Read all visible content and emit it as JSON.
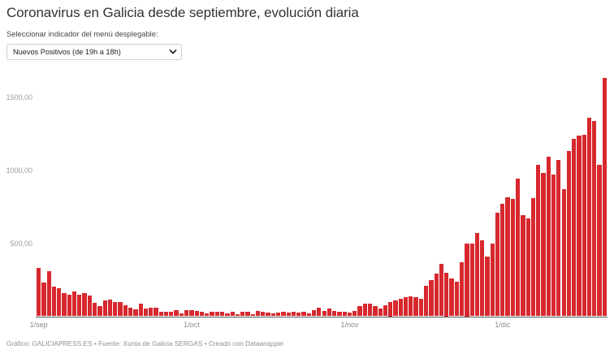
{
  "header": {
    "title": "Coronavirus en Galicia desde septiembre, evolución diaria",
    "subtitle": "Seleccionar indicador del menú desplegable:"
  },
  "indicator_select": {
    "selected": "Nuevos Positivos (de 19h a 18h)",
    "icon": "chevron-down-icon"
  },
  "footer": {
    "text": "Gráfico: GALICIAPRESS.ES • Fuente: Xunta de Galicia SERGAS • Creado con Datawrapper"
  },
  "colors": {
    "bar": "#d7282e",
    "axis_text": "#9a9a9a",
    "title": "#333333"
  },
  "chart_data": {
    "type": "bar",
    "title": "Coronavirus en Galicia desde septiembre, evolución diaria",
    "series_name": "Nuevos Positivos (de 19h a 18h)",
    "xlabel": "",
    "ylabel": "",
    "ylim": [
      0,
      1629
    ],
    "grid": false,
    "legend": "none",
    "y_ticks": [
      {
        "value": 500,
        "label": "500,00"
      },
      {
        "value": 1000,
        "label": "1000,00"
      },
      {
        "value": 1500,
        "label": "1500,00"
      }
    ],
    "x_ticks": [
      {
        "index": 0,
        "label": "1/sep"
      },
      {
        "index": 30,
        "label": "1/oct"
      },
      {
        "index": 61,
        "label": "1/nov"
      },
      {
        "index": 91,
        "label": "1/dic"
      }
    ],
    "categories": [
      "1/sep",
      "2/sep",
      "3/sep",
      "4/sep",
      "5/sep",
      "6/sep",
      "7/sep",
      "8/sep",
      "9/sep",
      "10/sep",
      "11/sep",
      "12/sep",
      "13/sep",
      "14/sep",
      "15/sep",
      "16/sep",
      "17/sep",
      "18/sep",
      "19/sep",
      "20/sep",
      "21/sep",
      "22/sep",
      "23/sep",
      "24/sep",
      "25/sep",
      "26/sep",
      "27/sep",
      "28/sep",
      "29/sep",
      "30/sep",
      "1/oct",
      "2/oct",
      "3/oct",
      "4/oct",
      "5/oct",
      "6/oct",
      "7/oct",
      "8/oct",
      "9/oct",
      "10/oct",
      "11/oct",
      "12/oct",
      "13/oct",
      "14/oct",
      "15/oct",
      "16/oct",
      "17/oct",
      "18/oct",
      "19/oct",
      "20/oct",
      "21/oct",
      "22/oct",
      "23/oct",
      "24/oct",
      "25/oct",
      "26/oct",
      "27/oct",
      "28/oct",
      "29/oct",
      "30/oct",
      "31/oct",
      "1/nov",
      "2/nov",
      "3/nov",
      "4/nov",
      "5/nov",
      "6/nov",
      "7/nov",
      "8/nov",
      "9/nov",
      "10/nov",
      "11/nov",
      "12/nov",
      "13/nov",
      "14/nov",
      "15/nov",
      "16/nov",
      "17/nov",
      "18/nov",
      "19/nov",
      "20/nov",
      "21/nov",
      "22/nov",
      "23/nov",
      "24/nov",
      "25/nov",
      "26/nov",
      "27/nov",
      "28/nov",
      "29/nov",
      "30/nov",
      "1/dic",
      "2/dic",
      "3/dic",
      "4/dic",
      "5/dic",
      "6/dic",
      "7/dic",
      "8/dic",
      "9/dic",
      "10/dic",
      "11/dic",
      "12/dic",
      "13/dic",
      "14/dic",
      "15/dic",
      "16/dic",
      "17/dic",
      "18/dic",
      "19/dic",
      "20/dic",
      "21/dic"
    ],
    "values": [
      328,
      231,
      309,
      205,
      192,
      156,
      146,
      172,
      146,
      161,
      144,
      89,
      70,
      111,
      113,
      98,
      97,
      74,
      57,
      46,
      85,
      52,
      56,
      56,
      29,
      33,
      28,
      39,
      20,
      41,
      44,
      34,
      28,
      22,
      30,
      31,
      31,
      20,
      28,
      13,
      30,
      28,
      15,
      35,
      28,
      24,
      20,
      24,
      31,
      26,
      30,
      24,
      31,
      22,
      44,
      59,
      35,
      53,
      35,
      33,
      28,
      26,
      37,
      72,
      85,
      85,
      72,
      52,
      74,
      100,
      106,
      122,
      131,
      135,
      133,
      122,
      211,
      246,
      292,
      361,
      300,
      259,
      235,
      372,
      500,
      496,
      570,
      517,
      411,
      498,
      706,
      771,
      813,
      802,
      944,
      694,
      668,
      807,
      1037,
      983,
      1092,
      967,
      1068,
      872,
      1128,
      1214,
      1237,
      1239,
      1357,
      1335,
      1037,
      1629
    ]
  }
}
